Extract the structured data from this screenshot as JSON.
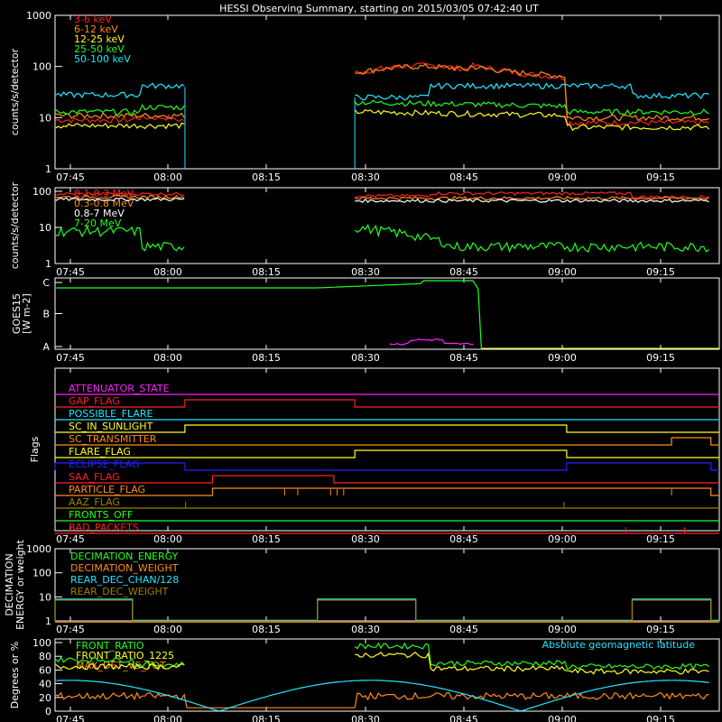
{
  "title": "HESSI Observing Summary, starting on 2015/03/05 07:42:40 UT",
  "time_ticks": [
    "07:45",
    "08:00",
    "08:15",
    "08:30",
    "08:45",
    "09:00",
    "09:15"
  ],
  "chart_data": [
    {
      "type": "line",
      "ylabel": "counts/s/detector",
      "ylog": true,
      "ytick_labels": [
        "1",
        "10",
        "100",
        "1000"
      ],
      "legend_pos": "top-left",
      "series": [
        {
          "name": "3-6 keV",
          "color": "#ff2020"
        },
        {
          "name": "6-12 keV",
          "color": "#ff8c1a"
        },
        {
          "name": "12-25 keV",
          "color": "#ffff20"
        },
        {
          "name": "25-50 keV",
          "color": "#20ff20"
        },
        {
          "name": "50-100 keV",
          "color": "#20e8ff"
        }
      ]
    },
    {
      "type": "line",
      "ylabel": "counts/s/detector",
      "ylog": true,
      "ytick_labels": [
        "1",
        "10",
        "100"
      ],
      "legend_pos": "top-left",
      "series": [
        {
          "name": "0.1-0.3 MeV",
          "color": "#ff2020"
        },
        {
          "name": "0.3-0.8 MeV",
          "color": "#ff8c1a"
        },
        {
          "name": "0.8-7 MeV",
          "color": "#ffffff"
        },
        {
          "name": "7-20 MeV",
          "color": "#20ff20"
        }
      ]
    },
    {
      "type": "line",
      "ylabel": "GOES15",
      "ylabel_units": "[W m-2]",
      "ytick_labels": [
        "A",
        "B",
        "C"
      ],
      "series": [
        {
          "color": "#20ff20"
        },
        {
          "color": "#ff20ff"
        }
      ]
    },
    {
      "type": "line",
      "ylabel": "Flags",
      "flags": [
        {
          "name": "ATTENUATOR_STATE",
          "color": "#ff20ff"
        },
        {
          "name": "GAP_FLAG",
          "color": "#ff2020"
        },
        {
          "name": "POSSIBLE_FLARE",
          "color": "#20e8ff"
        },
        {
          "name": "SC_IN_SUNLIGHT",
          "color": "#ffff20"
        },
        {
          "name": "SC_TRANSMITTER",
          "color": "#ff8c1a"
        },
        {
          "name": "FLARE_FLAG",
          "color": "#ffff20"
        },
        {
          "name": "ECLIPSE_FLAG",
          "color": "#2020ff"
        },
        {
          "name": "SAA_FLAG",
          "color": "#ff2020"
        },
        {
          "name": "PARTICLE_FLAG",
          "color": "#ff8c1a"
        },
        {
          "name": "AAZ_FLAG",
          "color": "#a08000"
        },
        {
          "name": "FRONTS_OFF",
          "color": "#20ff20"
        },
        {
          "name": "BAD_PACKETS",
          "color": "#ff2020"
        }
      ]
    },
    {
      "type": "line",
      "ylabel": "DECIMATION ENERGY or weight",
      "ylog": true,
      "ytick_labels": [
        "1",
        "10",
        "100",
        "1000"
      ],
      "legend_pos": "top-left",
      "series": [
        {
          "name": "DECIMATION_ENERGY",
          "color": "#20ff20"
        },
        {
          "name": "DECIMATION_WEIGHT",
          "color": "#ff8c1a"
        },
        {
          "name": "REAR_DEC_CHAN/128",
          "color": "#20e8ff"
        },
        {
          "name": "REAR_DEC_WEIGHT",
          "color": "#a08000"
        }
      ]
    },
    {
      "type": "line",
      "ylabel": "Degrees or %",
      "ytick_labels": [
        "0",
        "20",
        "40",
        "60",
        "80",
        "100"
      ],
      "legend_pos": "top-left",
      "annotation": "Absolute geomagnetic latitude",
      "series": [
        {
          "name": "FRONT_RATIO",
          "color": "#20ff20"
        },
        {
          "name": "FRONT_RATIO_1225",
          "color": "#ffff20"
        },
        {
          "name": "MAX_DET_VS_TOT",
          "color": "#ff8c1a"
        },
        {
          "color": "#20e8ff"
        }
      ]
    }
  ]
}
